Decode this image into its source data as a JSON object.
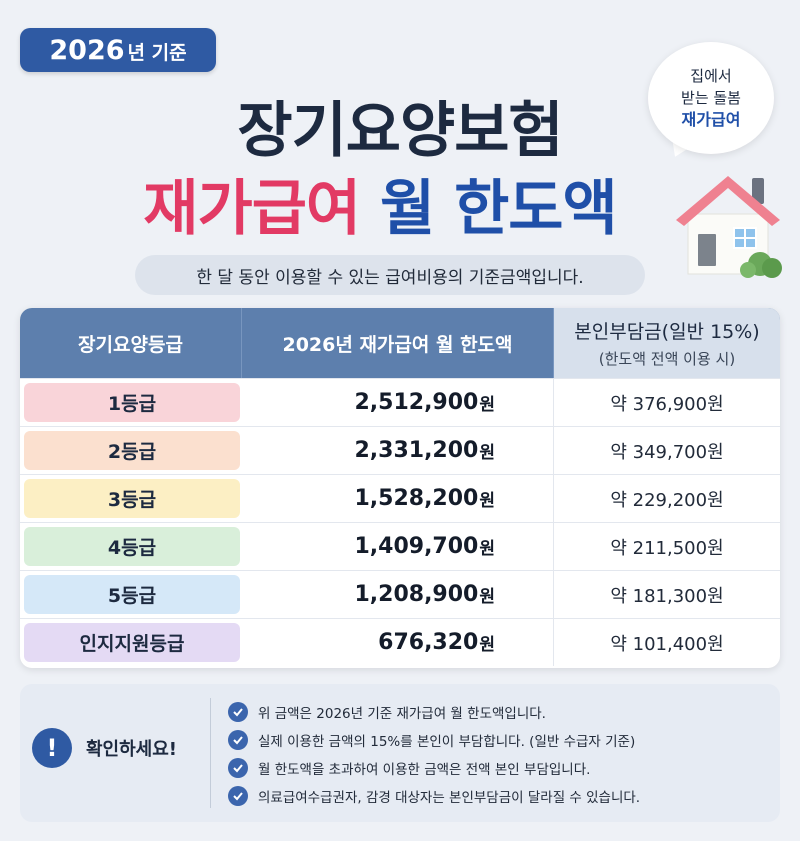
{
  "badge": {
    "year": "2026",
    "rest": "년 기준"
  },
  "title": {
    "line1": "장기요양보험",
    "line2_pink": "재가급여",
    "line2_blue": "월 한도액"
  },
  "bubble": {
    "line1": "집에서",
    "line2": "받는 돌봄",
    "line3": "재가급여"
  },
  "subtitle": "한 달 동안 이용할 수 있는 급여비용의 기준금액입니다.",
  "table": {
    "headers": {
      "grade": "장기요양등급",
      "limit": "2026년 재가급여 월 한도액",
      "copay": "본인부담금(일반 15%)",
      "copay_sub": "(한도액 전액 이용 시)"
    },
    "currency": "원",
    "rows": [
      {
        "grade": "1등급",
        "amount": "2,512,900",
        "copay": "약 376,900원",
        "color": "#f9d4d9"
      },
      {
        "grade": "2등급",
        "amount": "2,331,200",
        "copay": "약 349,700원",
        "color": "#fbe0cf"
      },
      {
        "grade": "3등급",
        "amount": "1,528,200",
        "copay": "약 229,200원",
        "color": "#fcefc4"
      },
      {
        "grade": "4등급",
        "amount": "1,409,700",
        "copay": "약 211,500원",
        "color": "#d9efda"
      },
      {
        "grade": "5등급",
        "amount": "1,208,900",
        "copay": "약 181,300원",
        "color": "#d5e8f8"
      },
      {
        "grade": "인지지원등급",
        "amount": "676,320",
        "copay": "약 101,400원",
        "color": "#e4daf4"
      }
    ]
  },
  "notice": {
    "icon": "exclamation-icon",
    "title": "확인하세요!",
    "items": [
      "위 금액은 2026년 기준 재가급여 월 한도액입니다.",
      "실제 이용한 금액의 15%를 본인이 부담합니다. (일반 수급자 기준)",
      "월 한도액을 초과하여 이용한 금액은 전액 본인 부담입니다.",
      "의료급여수급권자, 감경 대상자는 본인부담금이 달라질 수 있습니다."
    ]
  }
}
